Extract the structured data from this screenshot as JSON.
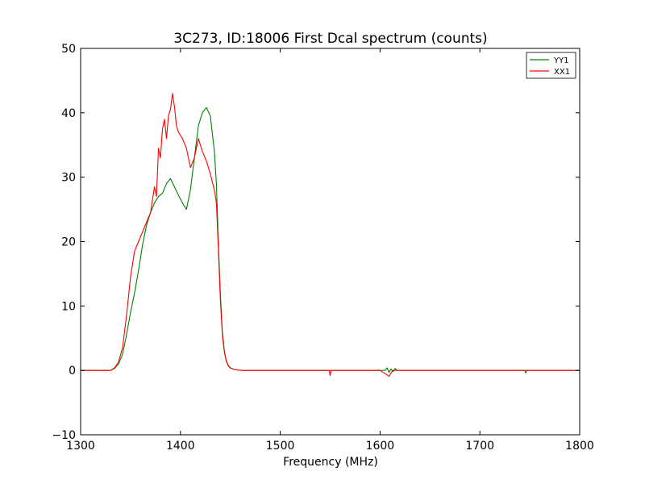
{
  "chart_data": {
    "type": "line",
    "title": "3C273, ID:18006 First Dcal spectrum (counts)",
    "xlabel": "Frequency (MHz)",
    "ylabel": "",
    "xlim": [
      1300,
      1800
    ],
    "ylim": [
      -10,
      50
    ],
    "xticks": [
      "1300",
      "1400",
      "1500",
      "1600",
      "1700",
      "1800"
    ],
    "yticks": [
      "−10",
      "0",
      "10",
      "20",
      "30",
      "40",
      "50"
    ],
    "legend_position": "top-right",
    "grid": false,
    "series": [
      {
        "name": "YY1",
        "color": "#008000",
        "x": [
          1300,
          1330,
          1334,
          1338,
          1342,
          1346,
          1350,
          1354,
          1358,
          1362,
          1366,
          1370,
          1374,
          1378,
          1382,
          1386,
          1390,
          1394,
          1398,
          1402,
          1406,
          1410,
          1414,
          1418,
          1422,
          1426,
          1430,
          1434,
          1436,
          1438,
          1440,
          1442,
          1444,
          1446,
          1448,
          1450,
          1454,
          1458,
          1462,
          1470,
          1500,
          1550,
          1605,
          1607,
          1609,
          1611,
          1613,
          1615,
          1617,
          1620,
          1640,
          1675,
          1700,
          1745,
          1746,
          1747,
          1800
        ],
        "y": [
          0,
          0,
          0.3,
          1.0,
          2.5,
          5.5,
          9.0,
          12.0,
          15.5,
          19.5,
          22.5,
          24.5,
          26.0,
          27.0,
          27.5,
          29.0,
          29.8,
          28.5,
          27.2,
          26.0,
          25.0,
          28.0,
          33.0,
          38.0,
          40.0,
          40.8,
          39.5,
          34.0,
          29.0,
          20.0,
          12.0,
          6.0,
          3.0,
          1.5,
          0.8,
          0.4,
          0.15,
          0.05,
          0,
          0,
          0,
          0,
          0,
          0.4,
          -0.3,
          0.2,
          -0.2,
          0.3,
          0,
          0,
          0,
          0,
          0,
          0,
          -0.4,
          0,
          0
        ]
      },
      {
        "name": "XX1",
        "color": "#ff0000",
        "x": [
          1300,
          1330,
          1334,
          1338,
          1342,
          1346,
          1350,
          1354,
          1358,
          1362,
          1366,
          1370,
          1374,
          1376,
          1378,
          1380,
          1382,
          1384,
          1386,
          1388,
          1390,
          1392,
          1394,
          1396,
          1398,
          1402,
          1406,
          1410,
          1414,
          1418,
          1422,
          1426,
          1430,
          1434,
          1436,
          1438,
          1440,
          1442,
          1444,
          1446,
          1448,
          1450,
          1454,
          1458,
          1462,
          1470,
          1500,
          1549,
          1550,
          1551,
          1600,
          1607,
          1609,
          1611,
          1613,
          1617,
          1620,
          1700,
          1800
        ],
        "y": [
          0,
          0,
          0.4,
          1.3,
          3.5,
          8.5,
          14.5,
          18.5,
          20.0,
          21.5,
          23.0,
          24.5,
          28.5,
          27.0,
          34.5,
          33.0,
          37.5,
          39.0,
          36.0,
          39.5,
          40.5,
          43.0,
          41.0,
          38.0,
          37.0,
          36.0,
          34.5,
          31.5,
          33.0,
          36.0,
          34.0,
          32.5,
          30.5,
          28.0,
          26.0,
          19.0,
          11.0,
          5.5,
          2.8,
          1.4,
          0.7,
          0.35,
          0.15,
          0.05,
          0,
          0,
          0,
          0,
          -0.8,
          0,
          0,
          -0.7,
          -0.9,
          -0.4,
          0,
          0,
          0,
          0,
          0
        ]
      }
    ]
  }
}
